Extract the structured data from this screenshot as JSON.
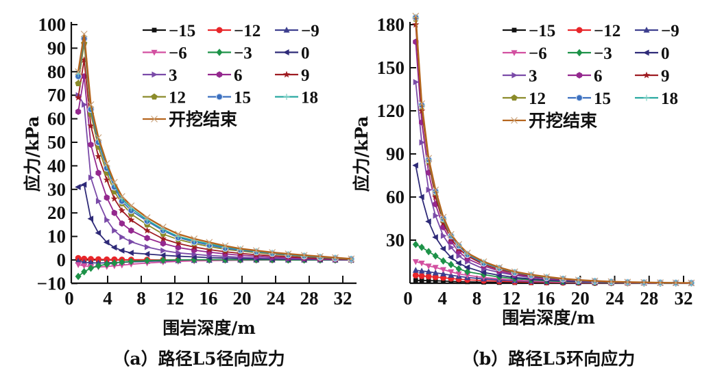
{
  "chart_data": [
    {
      "type": "line",
      "caption": "（a）路径L5径向应力",
      "xlabel": "围岩深度/m",
      "ylabel": "应力/kPa",
      "xlim": [
        0,
        33.5
      ],
      "ylim": [
        -10,
        100
      ],
      "xticks": [
        0,
        4,
        8,
        12,
        16,
        20,
        24,
        28,
        32
      ],
      "yticks": [
        -10,
        0,
        10,
        20,
        30,
        40,
        50,
        60,
        70,
        80,
        90,
        100
      ],
      "grid": false,
      "legend_position": "top-right",
      "x": [
        0.5,
        1.2,
        2.0,
        2.9,
        3.9,
        4.8,
        5.7,
        6.8,
        8.7,
        10.6,
        12.4,
        14.3,
        16.1,
        18.0,
        19.8,
        21.7,
        23.6,
        25.5,
        27.4,
        29.3,
        31.1,
        33.0
      ],
      "series": [
        {
          "name": "-15",
          "color": "#111111",
          "marker": "square",
          "values": [
            0,
            0,
            0,
            0,
            0,
            0,
            0,
            0,
            0,
            0,
            0,
            0,
            0,
            0,
            0,
            0,
            0,
            0,
            0,
            0,
            0,
            0
          ]
        },
        {
          "name": "-12",
          "color": "#e8262a",
          "marker": "circle",
          "values": [
            0.8,
            0.5,
            0.4,
            0.3,
            0.2,
            0.2,
            0.1,
            0.1,
            0.1,
            0,
            0,
            0,
            0,
            0,
            0,
            0,
            0,
            0,
            0,
            0,
            0,
            0
          ]
        },
        {
          "name": "-9",
          "color": "#3d3f8f",
          "marker": "triangle-up",
          "values": [
            -0.5,
            -1,
            -1.2,
            -1.3,
            -1.2,
            -1.1,
            -1,
            -0.8,
            -0.6,
            -0.4,
            -0.3,
            -0.2,
            -0.1,
            -0.1,
            0,
            0,
            0,
            0,
            0,
            0,
            0,
            0
          ]
        },
        {
          "name": "-6",
          "color": "#d24fa0",
          "marker": "triangle-down",
          "values": [
            -2,
            -2.5,
            -2.8,
            -3,
            -2.8,
            -2.5,
            -2.2,
            -1.8,
            -1.3,
            -0.9,
            -0.6,
            -0.4,
            -0.3,
            -0.2,
            -0.1,
            -0.1,
            0,
            0,
            0,
            0,
            0,
            0
          ]
        },
        {
          "name": "-3",
          "color": "#1d9248",
          "marker": "diamond",
          "values": [
            -7,
            -5,
            -3.5,
            -2.5,
            -1.8,
            -1.3,
            -0.9,
            -0.6,
            -0.3,
            -0.1,
            0,
            0.1,
            0.1,
            0.1,
            0.1,
            0.1,
            0.1,
            0,
            0,
            0,
            0,
            0
          ]
        },
        {
          "name": "0",
          "color": "#2e2a78",
          "marker": "triangle-left",
          "values": [
            31,
            32,
            17.5,
            11.5,
            7.5,
            5.3,
            4,
            3,
            2.5,
            2,
            1.6,
            1.3,
            1,
            0.8,
            0.6,
            0.5,
            0.4,
            0.3,
            0.2,
            0.2,
            0.1,
            0
          ]
        },
        {
          "name": "3",
          "color": "#7a4aa8",
          "marker": "triangle-right",
          "values": [
            70,
            66,
            35,
            25,
            17,
            12.5,
            9.7,
            7.7,
            5.5,
            4,
            3,
            2.4,
            1.9,
            1.5,
            1.1,
            0.9,
            0.7,
            0.5,
            0.4,
            0.3,
            0.2,
            0.1
          ]
        },
        {
          "name": "6",
          "color": "#94288e",
          "marker": "hexagon",
          "values": [
            63,
            78,
            49,
            37,
            26.5,
            20,
            15.5,
            12.5,
            9.3,
            7,
            5.3,
            4.2,
            3.3,
            2.6,
            2,
            1.6,
            1.2,
            0.9,
            0.7,
            0.5,
            0.3,
            0.1
          ]
        },
        {
          "name": "9",
          "color": "#9e1b21",
          "marker": "star",
          "values": [
            69,
            85,
            57,
            44,
            34,
            26,
            21,
            17,
            12.5,
            9,
            7,
            5.5,
            4.4,
            3.5,
            2.8,
            2.2,
            1.8,
            1.4,
            1,
            0.7,
            0.5,
            0.2
          ]
        },
        {
          "name": "12",
          "color": "#8b8b2a",
          "marker": "pentagon",
          "values": [
            75,
            92,
            62,
            48,
            37,
            29,
            24,
            19.5,
            15,
            11,
            8.7,
            7,
            5.7,
            4.5,
            3.8,
            3.1,
            2.5,
            2,
            1.5,
            1.1,
            0.7,
            0.3
          ]
        },
        {
          "name": "15",
          "color": "#3b6fbf",
          "marker": "circle-open",
          "values": [
            78,
            94,
            64,
            50,
            39,
            31,
            25,
            21,
            16.5,
            12.5,
            9.5,
            7.7,
            6.3,
            5,
            4.2,
            3.5,
            2.8,
            2.2,
            1.7,
            1.2,
            0.8,
            0.4
          ]
        },
        {
          "name": "18",
          "color": "#28a8a0",
          "marker": "plus",
          "values": [
            79,
            95,
            65,
            51,
            40,
            32,
            26,
            22,
            17,
            13,
            10,
            8.2,
            6.8,
            5.5,
            4.5,
            3.7,
            3,
            2.4,
            1.8,
            1.3,
            0.9,
            0.4
          ]
        },
        {
          "name": "开挖结束",
          "color": "#b5651d",
          "marker": "x",
          "values": [
            80,
            96,
            66,
            52,
            41,
            33,
            27,
            23,
            18,
            14,
            11,
            9,
            7.5,
            6,
            4.8,
            4,
            3.2,
            2.6,
            2,
            1.5,
            1,
            0.5
          ]
        }
      ]
    },
    {
      "type": "line",
      "caption": "（b）路径L5环向应力",
      "xlabel": "围岩深度/m",
      "ylabel": "应力/kPa",
      "xlim": [
        0,
        33.5
      ],
      "ylim": [
        0,
        185
      ],
      "xticks": [
        0,
        4,
        8,
        12,
        16,
        20,
        24,
        28,
        32
      ],
      "yticks": [
        30,
        60,
        90,
        120,
        150,
        180
      ],
      "grid": false,
      "legend_position": "top-right",
      "x": [
        0.9,
        1.6,
        2.4,
        3.2,
        4.1,
        5.0,
        5.9,
        6.9,
        8.8,
        10.6,
        12.4,
        14.3,
        16.1,
        18.0,
        19.8,
        21.7,
        23.6,
        25.5,
        27.4,
        29.3,
        31.1,
        32.9
      ],
      "series": [
        {
          "name": "-15",
          "color": "#111111",
          "marker": "square",
          "values": [
            2,
            1.9,
            1.8,
            1.7,
            1.5,
            1.3,
            1.1,
            1,
            0.7,
            0.5,
            0.4,
            0.3,
            0.2,
            0.2,
            0.1,
            0.1,
            0.1,
            0,
            0,
            0,
            0,
            0
          ]
        },
        {
          "name": "-12",
          "color": "#e8262a",
          "marker": "circle",
          "values": [
            5.5,
            5,
            4.7,
            4.3,
            3.8,
            3.3,
            2.8,
            2.4,
            1.8,
            1.4,
            1,
            0.8,
            0.6,
            0.4,
            0.3,
            0.2,
            0.2,
            0.1,
            0.1,
            0,
            0,
            0
          ]
        },
        {
          "name": "-9",
          "color": "#3d3f8f",
          "marker": "triangle-up",
          "values": [
            9,
            8.5,
            8,
            7.2,
            6.5,
            5.5,
            4.8,
            4,
            3,
            2.3,
            1.7,
            1.3,
            1,
            0.7,
            0.5,
            0.4,
            0.3,
            0.2,
            0.1,
            0.1,
            0,
            0
          ]
        },
        {
          "name": "-6",
          "color": "#d24fa0",
          "marker": "triangle-down",
          "values": [
            15,
            14,
            12,
            11,
            9.5,
            8,
            6.5,
            5.5,
            4,
            3,
            2.2,
            1.6,
            1.2,
            0.9,
            0.6,
            0.4,
            0.3,
            0.2,
            0.1,
            0.1,
            0.1,
            0
          ]
        },
        {
          "name": "-3",
          "color": "#1d9248",
          "marker": "diamond",
          "values": [
            27,
            25,
            22,
            19,
            15.5,
            13,
            10,
            8,
            6,
            4.3,
            3.2,
            2.4,
            1.7,
            1.2,
            0.9,
            0.6,
            0.4,
            0.3,
            0.2,
            0.1,
            0.1,
            0.1
          ]
        },
        {
          "name": "0",
          "color": "#2e2a78",
          "marker": "triangle-left",
          "values": [
            82,
            60,
            43,
            32,
            24,
            18,
            14,
            11,
            7.5,
            5.5,
            4,
            3,
            2.2,
            1.6,
            1.1,
            0.8,
            0.6,
            0.4,
            0.3,
            0.2,
            0.1,
            0.1
          ]
        },
        {
          "name": "3",
          "color": "#7a4aa8",
          "marker": "triangle-right",
          "values": [
            140,
            98,
            65,
            47,
            33,
            25,
            19,
            15,
            10,
            7.5,
            5.5,
            4,
            3,
            2.2,
            1.5,
            1,
            0.7,
            0.5,
            0.4,
            0.3,
            0.2,
            0.1
          ]
        },
        {
          "name": "6",
          "color": "#94288e",
          "marker": "hexagon",
          "values": [
            168,
            112,
            77,
            55,
            39,
            29,
            22,
            17,
            12,
            8.5,
            6,
            4.5,
            3.3,
            2.4,
            1.7,
            1.2,
            0.8,
            0.6,
            0.4,
            0.3,
            0.2,
            0.1
          ]
        },
        {
          "name": "9",
          "color": "#9e1b21",
          "marker": "star",
          "values": [
            180,
            120,
            84,
            60,
            42,
            31,
            24,
            19,
            13,
            9.5,
            7,
            5,
            3.7,
            2.7,
            1.9,
            1.3,
            0.9,
            0.6,
            0.4,
            0.3,
            0.2,
            0.1
          ]
        },
        {
          "name": "12",
          "color": "#8b8b2a",
          "marker": "pentagon",
          "values": [
            184,
            123,
            85,
            63,
            44,
            33,
            26,
            20,
            14,
            10.5,
            7.5,
            5.5,
            4,
            3,
            2,
            1.5,
            1,
            0.7,
            0.5,
            0.4,
            0.3,
            0.2
          ]
        },
        {
          "name": "15",
          "color": "#3b6fbf",
          "marker": "circle-open",
          "values": [
            185,
            124,
            86,
            64,
            45,
            33,
            26,
            20,
            14,
            10.5,
            7.5,
            5.5,
            4,
            3,
            2,
            1.5,
            1,
            0.7,
            0.5,
            0.4,
            0.3,
            0.2
          ]
        },
        {
          "name": "18",
          "color": "#28a8a0",
          "marker": "plus",
          "values": [
            185,
            124,
            86,
            64,
            45,
            33.5,
            26.5,
            20.5,
            14.5,
            10.7,
            7.7,
            5.7,
            4.2,
            3.1,
            2.1,
            1.5,
            1,
            0.7,
            0.5,
            0.4,
            0.3,
            0.2
          ]
        },
        {
          "name": "开挖结束",
          "color": "#b5651d",
          "marker": "x",
          "values": [
            186,
            125,
            87,
            65,
            46,
            34,
            27,
            21,
            15,
            11,
            8,
            6,
            4.5,
            3.2,
            2.3,
            1.6,
            1.1,
            0.8,
            0.6,
            0.4,
            0.3,
            0.2
          ]
        }
      ]
    }
  ]
}
